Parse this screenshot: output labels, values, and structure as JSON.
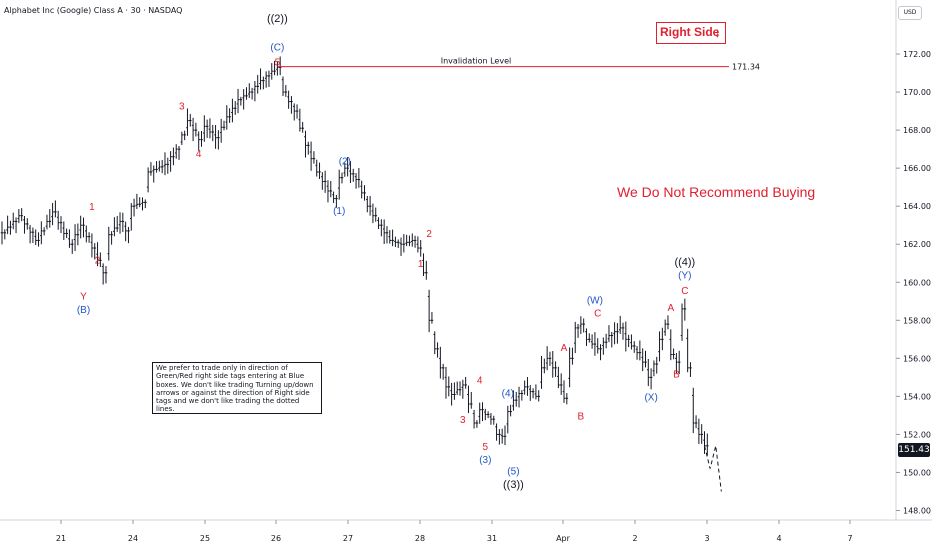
{
  "header": {
    "title": "Alphabet Inc (Google) Class A · 30 · NASDAQ",
    "currency": "USD"
  },
  "last_price": "151.43",
  "right_side_tag": {
    "label": "Right Side",
    "arrow": "🡻",
    "color": "#e0202f"
  },
  "advice": "We Do Not Recommend Buying",
  "note": "We prefer to trade only in direction of Green/Red right side tags entering at Blue boxes. We don't like trading Turning up/down arrows or against the direction of Right side tags and we don't like trading the dotted lines.",
  "colors": {
    "bars": "#131722",
    "red": "#e0202f",
    "blue": "#2156c8",
    "black": "#131722",
    "level_line": "#e0202f"
  },
  "chart_data": {
    "type": "bar",
    "ohlc_interval": "30",
    "ylim": [
      147.5,
      174
    ],
    "y_ticks": [
      "172.00",
      "170.00",
      "168.00",
      "166.00",
      "164.00",
      "162.00",
      "160.00",
      "158.00",
      "156.00",
      "154.00",
      "152.00",
      "150.00",
      "148.00"
    ],
    "x_ticks": [
      "21",
      "24",
      "25",
      "26",
      "27",
      "28",
      "31",
      "Apr",
      "2",
      "3",
      "4",
      "7"
    ],
    "invalidation": {
      "label": "Invalidation Level",
      "value": "171.34",
      "price": 171.34
    },
    "price_path": [
      [
        0,
        162.6
      ],
      [
        3,
        163.5
      ],
      [
        6,
        162.2
      ],
      [
        9,
        163.7
      ],
      [
        12,
        162.0
      ],
      [
        14,
        163.0
      ],
      [
        16,
        161.8
      ],
      [
        18,
        160.5
      ],
      [
        19,
        162.5
      ],
      [
        21,
        163.2
      ],
      [
        22,
        162.7
      ],
      [
        23,
        164.0
      ],
      [
        25,
        164.2
      ],
      [
        26,
        165.8
      ],
      [
        29,
        166.2
      ],
      [
        31,
        167.0
      ],
      [
        33,
        168.5
      ],
      [
        35,
        167.5
      ],
      [
        36,
        168.2
      ],
      [
        38,
        167.6
      ],
      [
        40,
        168.7
      ],
      [
        42,
        169.6
      ],
      [
        44,
        170.0
      ],
      [
        46,
        170.6
      ],
      [
        48,
        171.1
      ],
      [
        49,
        171.3
      ],
      [
        50,
        170.0
      ],
      [
        52,
        169.0
      ],
      [
        54,
        167.2
      ],
      [
        56,
        165.8
      ],
      [
        58,
        164.8
      ],
      [
        59,
        164.4
      ],
      [
        60,
        165.5
      ],
      [
        61,
        166.0
      ],
      [
        63,
        165.4
      ],
      [
        65,
        164.0
      ],
      [
        67,
        163.0
      ],
      [
        69,
        162.2
      ],
      [
        71,
        162.0
      ],
      [
        73,
        162.2
      ],
      [
        74,
        161.8
      ],
      [
        75,
        160.5
      ],
      [
        76,
        158.0
      ],
      [
        77,
        156.5
      ],
      [
        78,
        155.5
      ],
      [
        79,
        154.5
      ],
      [
        80,
        154.1
      ],
      [
        82,
        154.6
      ],
      [
        83,
        153.6
      ],
      [
        84,
        152.6
      ],
      [
        85,
        153.3
      ],
      [
        87,
        152.8
      ],
      [
        88,
        152.0
      ],
      [
        89,
        151.9
      ],
      [
        90,
        153.2
      ],
      [
        91,
        153.8
      ],
      [
        93,
        154.5
      ],
      [
        95,
        154.0
      ],
      [
        96,
        155.5
      ],
      [
        97,
        156.0
      ],
      [
        98,
        155.5
      ],
      [
        99,
        154.6
      ],
      [
        100,
        153.9
      ],
      [
        101,
        156.0
      ],
      [
        102,
        157.6
      ],
      [
        103,
        157.8
      ],
      [
        104,
        157.0
      ],
      [
        106,
        156.5
      ],
      [
        108,
        157.2
      ],
      [
        110,
        157.6
      ],
      [
        111,
        157.0
      ],
      [
        113,
        156.3
      ],
      [
        114,
        155.8
      ],
      [
        115,
        155.0
      ],
      [
        116,
        155.7
      ],
      [
        117,
        157.0
      ],
      [
        118,
        157.8
      ],
      [
        119,
        156.2
      ],
      [
        120,
        155.8
      ],
      [
        121,
        158.6
      ],
      [
        122,
        155.5
      ],
      [
        123,
        152.6
      ],
      [
        124,
        152.0
      ],
      [
        125,
        151.4
      ]
    ],
    "projection": [
      [
        125,
        151.4
      ],
      [
        126,
        150.2
      ],
      [
        127,
        151.4
      ],
      [
        128,
        149.0
      ]
    ],
    "labels": [
      {
        "text": "((2))",
        "x": 49,
        "price": 173.9,
        "color": "black",
        "size": 11
      },
      {
        "text": "(C)",
        "x": 49,
        "price": 172.4,
        "color": "blue",
        "size": 10
      },
      {
        "text": "5",
        "x": 49,
        "price": 171.6,
        "color": "red",
        "size": 10
      },
      {
        "text": "3",
        "x": 32,
        "price": 169.3,
        "color": "red",
        "size": 10
      },
      {
        "text": "4",
        "x": 35,
        "price": 166.8,
        "color": "red",
        "size": 10
      },
      {
        "text": "1",
        "x": 16,
        "price": 164.0,
        "color": "red",
        "size": 10
      },
      {
        "text": "2",
        "x": 17,
        "price": 161.2,
        "color": "red",
        "size": 10
      },
      {
        "text": "Y",
        "x": 14.5,
        "price": 159.3,
        "color": "red",
        "size": 10
      },
      {
        "text": "(B)",
        "x": 14.5,
        "price": 158.6,
        "color": "blue",
        "size": 10
      },
      {
        "text": "(2)",
        "x": 61,
        "price": 166.4,
        "color": "blue",
        "size": 10
      },
      {
        "text": "(1)",
        "x": 60,
        "price": 163.8,
        "color": "blue",
        "size": 10
      },
      {
        "text": "2",
        "x": 76,
        "price": 162.6,
        "color": "red",
        "size": 10
      },
      {
        "text": "1",
        "x": 74.5,
        "price": 161.0,
        "color": "red",
        "size": 10
      },
      {
        "text": "4",
        "x": 85,
        "price": 154.9,
        "color": "red",
        "size": 10
      },
      {
        "text": "3",
        "x": 82,
        "price": 152.8,
        "color": "red",
        "size": 10
      },
      {
        "text": "5",
        "x": 86,
        "price": 151.4,
        "color": "red",
        "size": 10
      },
      {
        "text": "(3)",
        "x": 86,
        "price": 150.7,
        "color": "blue",
        "size": 10
      },
      {
        "text": "(4)",
        "x": 90,
        "price": 154.2,
        "color": "blue",
        "size": 10
      },
      {
        "text": "(5)",
        "x": 91,
        "price": 150.1,
        "color": "blue",
        "size": 10
      },
      {
        "text": "((3))",
        "x": 91,
        "price": 149.4,
        "color": "black",
        "size": 11
      },
      {
        "text": "A",
        "x": 100,
        "price": 156.6,
        "color": "red",
        "size": 10
      },
      {
        "text": "B",
        "x": 103,
        "price": 153.0,
        "color": "red",
        "size": 10
      },
      {
        "text": "(W)",
        "x": 105.5,
        "price": 159.1,
        "color": "blue",
        "size": 10
      },
      {
        "text": "C",
        "x": 106,
        "price": 158.4,
        "color": "red",
        "size": 10
      },
      {
        "text": "(X)",
        "x": 115.5,
        "price": 154.0,
        "color": "blue",
        "size": 10
      },
      {
        "text": "A",
        "x": 119,
        "price": 158.7,
        "color": "red",
        "size": 10
      },
      {
        "text": "B",
        "x": 120,
        "price": 155.2,
        "color": "red",
        "size": 10
      },
      {
        "text": "((4))",
        "x": 121.5,
        "price": 161.1,
        "color": "black",
        "size": 11
      },
      {
        "text": "(Y)",
        "x": 121.5,
        "price": 160.4,
        "color": "blue",
        "size": 10
      },
      {
        "text": "C",
        "x": 121.5,
        "price": 159.6,
        "color": "red",
        "size": 10
      }
    ]
  }
}
